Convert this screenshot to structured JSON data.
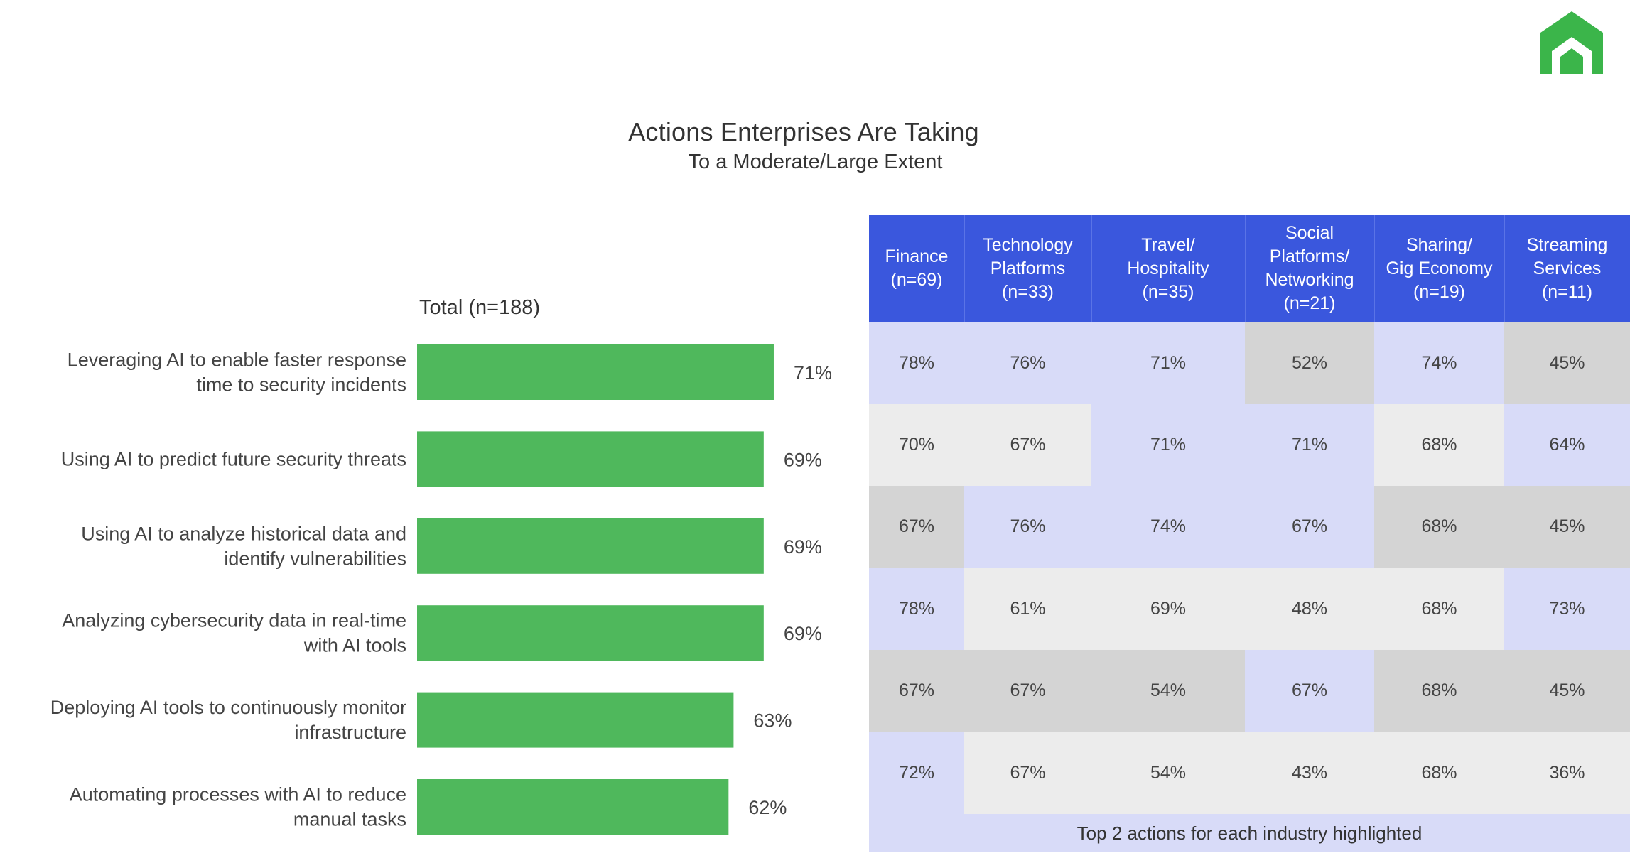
{
  "header": {
    "title": "Actions Enterprises Are Taking",
    "subtitle": "To a Moderate/Large Extent"
  },
  "brand": {
    "logo_color": "#3bb54a"
  },
  "chart_data": {
    "type": "bar",
    "orientation": "horizontal",
    "series_label": "Total (n=188)",
    "categories": [
      "Leveraging AI to enable faster response time to security incidents",
      "Using AI to predict future security threats",
      "Using AI to analyze historical data and identify vulnerabilities",
      "Analyzing cybersecurity data in real-time with AI tools",
      "Deploying AI tools to continuously monitor infrastructure",
      "Automating processes with AI to reduce manual tasks"
    ],
    "category_lines": [
      [
        "Leveraging AI to enable faster response",
        "time to security incidents"
      ],
      [
        "Using AI to predict future security threats"
      ],
      [
        "Using AI to analyze historical data and",
        "identify vulnerabilities"
      ],
      [
        "Analyzing cybersecurity data in real-time",
        "with AI tools"
      ],
      [
        "Deploying AI tools to continuously monitor",
        "infrastructure"
      ],
      [
        "Automating processes with AI to reduce",
        "manual tasks"
      ]
    ],
    "values": [
      71,
      69,
      69,
      69,
      63,
      62
    ],
    "value_labels": [
      "71%",
      "69%",
      "69%",
      "69%",
      "63%",
      "62%"
    ],
    "bar_color": "#4fb85c",
    "grid": false
  },
  "industry_table": {
    "columns": [
      "Finance\n(n=69)",
      "Technology\nPlatforms\n(n=33)",
      "Travel/\nHospitality\n(n=35)",
      "Social\nPlatforms/\nNetworking\n(n=21)",
      "Sharing/\nGig Economy\n(n=19)",
      "Streaming\nServices\n(n=11)"
    ],
    "rows": [
      [
        "78%",
        "76%",
        "71%",
        "52%",
        "74%",
        "45%"
      ],
      [
        "70%",
        "67%",
        "71%",
        "71%",
        "68%",
        "64%"
      ],
      [
        "67%",
        "76%",
        "74%",
        "67%",
        "68%",
        "45%"
      ],
      [
        "78%",
        "61%",
        "69%",
        "48%",
        "68%",
        "73%"
      ],
      [
        "67%",
        "67%",
        "54%",
        "67%",
        "68%",
        "45%"
      ],
      [
        "72%",
        "67%",
        "54%",
        "43%",
        "68%",
        "36%"
      ]
    ],
    "cell_shading": [
      [
        "highlight",
        "highlight",
        "highlight",
        "dark",
        "highlight",
        "dark"
      ],
      [
        "light",
        "light",
        "highlight",
        "highlight",
        "light",
        "highlight"
      ],
      [
        "dark",
        "highlight",
        "highlight",
        "highlight",
        "dark",
        "dark"
      ],
      [
        "highlight",
        "light",
        "light",
        "light",
        "light",
        "highlight"
      ],
      [
        "dark",
        "dark",
        "dark",
        "highlight",
        "dark",
        "dark"
      ],
      [
        "highlight",
        "light",
        "light",
        "light",
        "light",
        "light"
      ]
    ],
    "footer": "Top 2 actions for each industry highlighted",
    "colors": {
      "header": "#3a57dd",
      "highlight": "#d8dbf8",
      "light": "#ececec",
      "dark": "#d4d4d4"
    }
  }
}
